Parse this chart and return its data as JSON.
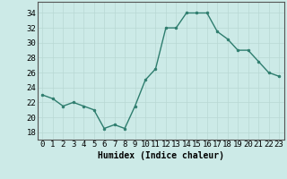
{
  "x": [
    0,
    1,
    2,
    3,
    4,
    5,
    6,
    7,
    8,
    9,
    10,
    11,
    12,
    13,
    14,
    15,
    16,
    17,
    18,
    19,
    20,
    21,
    22,
    23
  ],
  "y": [
    23,
    22.5,
    21.5,
    22,
    21.5,
    21,
    18.5,
    19,
    18.5,
    21.5,
    25,
    26.5,
    32,
    32,
    34,
    34,
    34,
    31.5,
    30.5,
    29,
    29,
    27.5,
    26,
    25.5
  ],
  "line_color": "#2e7d6e",
  "marker": "o",
  "marker_size": 2,
  "bg_color": "#cceae7",
  "grid_color": "#b8d8d4",
  "xlabel": "Humidex (Indice chaleur)",
  "ylim": [
    17,
    35.5
  ],
  "xlim": [
    -0.5,
    23.5
  ],
  "yticks": [
    18,
    20,
    22,
    24,
    26,
    28,
    30,
    32,
    34
  ],
  "xticks": [
    0,
    1,
    2,
    3,
    4,
    5,
    6,
    7,
    8,
    9,
    10,
    11,
    12,
    13,
    14,
    15,
    16,
    17,
    18,
    19,
    20,
    21,
    22,
    23
  ],
  "xlabel_fontsize": 7,
  "tick_fontsize": 6.5
}
